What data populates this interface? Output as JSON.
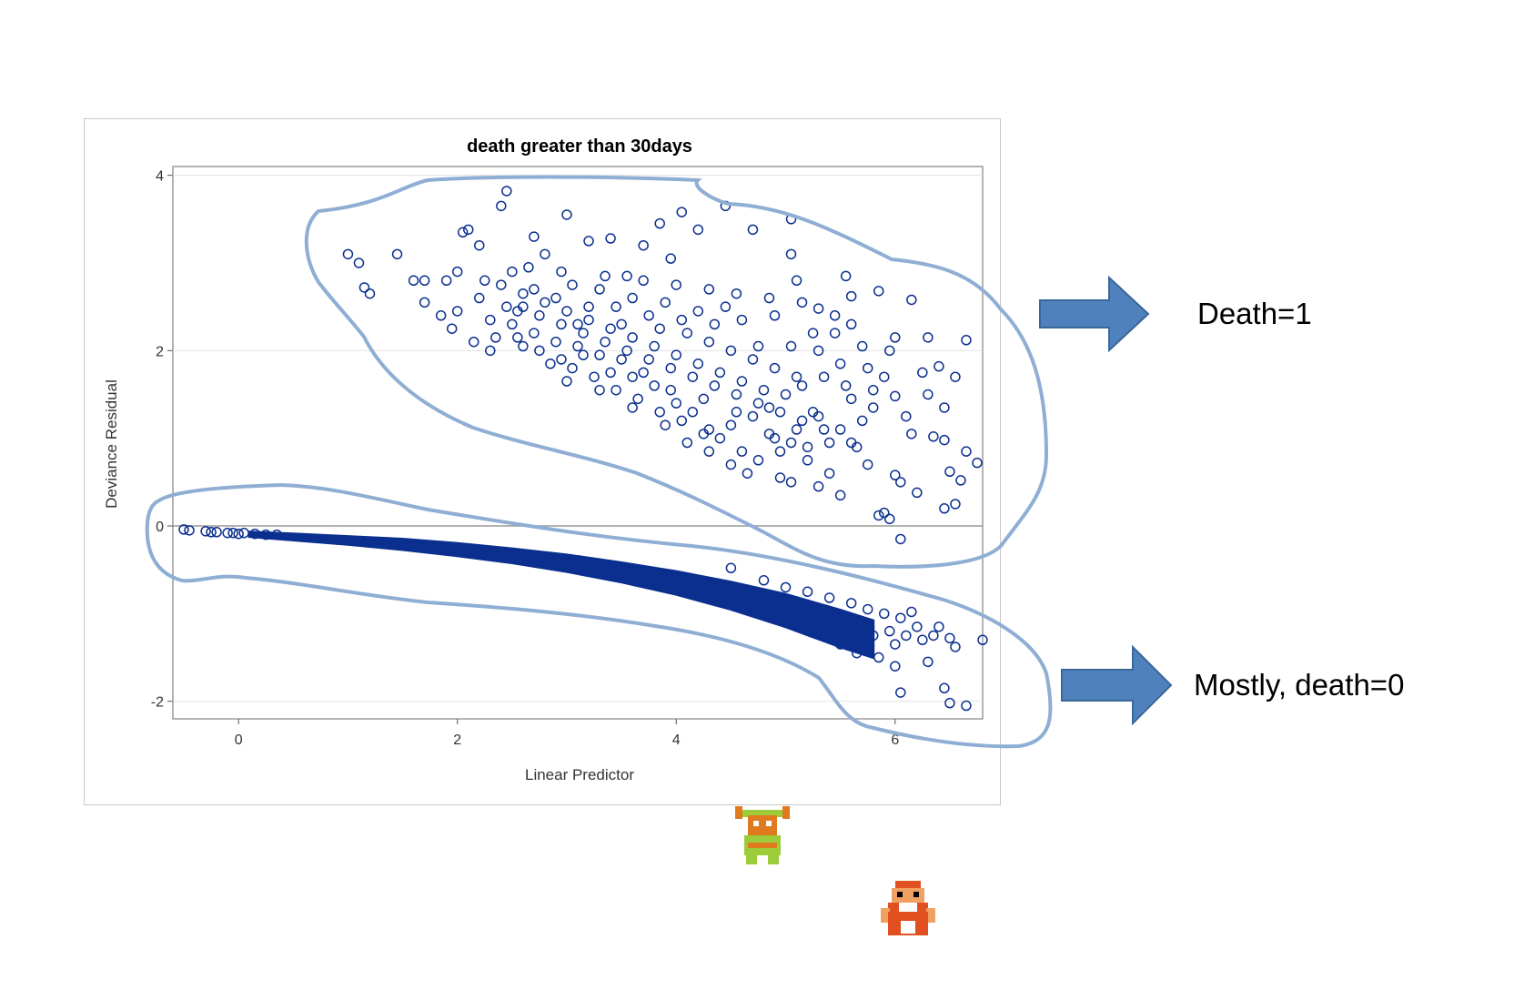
{
  "chart_data": {
    "type": "scatter",
    "title": "death greater than 30days",
    "xlabel": "Linear Predictor",
    "ylabel": "Deviance Residual",
    "xlim": [
      -0.6,
      6.8
    ],
    "ylim": [
      -2.2,
      4.1
    ],
    "xticks": [
      0,
      2,
      4,
      6
    ],
    "yticks": [
      -2,
      0,
      2,
      4
    ],
    "grid": "horizontal",
    "marker": "open circle",
    "series_color": "#0a2f8f",
    "series": [
      {
        "group": "death=1 (upper cluster)",
        "points": [
          [
            1.0,
            3.1
          ],
          [
            1.1,
            3.0
          ],
          [
            1.15,
            2.72
          ],
          [
            1.2,
            2.65
          ],
          [
            1.45,
            3.1
          ],
          [
            1.6,
            2.8
          ],
          [
            1.7,
            2.8
          ],
          [
            1.7,
            2.55
          ],
          [
            1.85,
            2.4
          ],
          [
            1.9,
            2.8
          ],
          [
            2.0,
            2.9
          ],
          [
            2.05,
            3.35
          ],
          [
            2.1,
            3.38
          ],
          [
            2.2,
            3.2
          ],
          [
            2.3,
            2.0
          ],
          [
            2.4,
            3.65
          ],
          [
            2.45,
            3.82
          ],
          [
            2.6,
            2.5
          ],
          [
            2.7,
            3.3
          ],
          [
            2.8,
            3.1
          ],
          [
            2.95,
            2.9
          ],
          [
            3.0,
            3.55
          ],
          [
            3.1,
            2.3
          ],
          [
            3.2,
            3.25
          ],
          [
            3.4,
            3.28
          ],
          [
            3.55,
            2.85
          ],
          [
            3.7,
            3.2
          ],
          [
            3.85,
            3.45
          ],
          [
            3.95,
            3.05
          ],
          [
            4.05,
            3.58
          ],
          [
            4.2,
            3.38
          ],
          [
            4.45,
            3.65
          ],
          [
            4.7,
            3.38
          ],
          [
            5.05,
            3.5
          ],
          [
            5.05,
            3.1
          ],
          [
            5.1,
            2.8
          ],
          [
            5.3,
            2.48
          ],
          [
            5.55,
            2.85
          ],
          [
            5.85,
            2.68
          ],
          [
            5.6,
            2.62
          ],
          [
            6.15,
            2.58
          ],
          [
            6.3,
            2.15
          ],
          [
            6.65,
            2.12
          ],
          [
            6.0,
            2.15
          ],
          [
            5.95,
            2.0
          ],
          [
            6.4,
            1.82
          ],
          [
            6.25,
            1.75
          ],
          [
            6.55,
            1.7
          ],
          [
            6.0,
            1.48
          ],
          [
            6.15,
            1.05
          ],
          [
            6.35,
            1.02
          ],
          [
            6.45,
            0.98
          ],
          [
            6.75,
            0.72
          ],
          [
            6.65,
            0.85
          ],
          [
            6.5,
            0.62
          ],
          [
            6.6,
            0.52
          ],
          [
            6.55,
            0.25
          ],
          [
            6.45,
            0.2
          ],
          [
            6.2,
            0.38
          ],
          [
            6.0,
            0.58
          ],
          [
            6.05,
            0.5
          ],
          [
            5.85,
            0.12
          ],
          [
            5.9,
            0.15
          ],
          [
            5.95,
            0.08
          ],
          [
            6.05,
            -0.15
          ],
          [
            5.75,
            0.7
          ],
          [
            5.5,
            0.35
          ],
          [
            5.3,
            0.45
          ],
          [
            5.05,
            0.5
          ],
          [
            4.95,
            0.55
          ],
          [
            4.75,
            0.75
          ],
          [
            4.6,
            0.85
          ],
          [
            4.9,
            1.0
          ],
          [
            5.2,
            0.9
          ],
          [
            5.4,
            0.95
          ],
          [
            5.65,
            0.9
          ],
          [
            4.4,
            1.0
          ],
          [
            4.3,
            1.1
          ],
          [
            4.15,
            1.3
          ],
          [
            4.0,
            1.4
          ],
          [
            3.8,
            1.6
          ],
          [
            3.6,
            1.7
          ],
          [
            3.5,
            1.9
          ],
          [
            3.3,
            1.95
          ],
          [
            3.1,
            2.05
          ],
          [
            2.9,
            2.1
          ],
          [
            2.7,
            2.2
          ],
          [
            2.5,
            2.3
          ],
          [
            2.6,
            2.05
          ],
          [
            2.85,
            1.85
          ],
          [
            3.05,
            1.8
          ],
          [
            3.25,
            1.7
          ],
          [
            3.45,
            1.55
          ],
          [
            3.65,
            1.45
          ],
          [
            3.85,
            1.3
          ],
          [
            4.05,
            1.2
          ],
          [
            4.25,
            1.05
          ],
          [
            4.5,
            1.15
          ],
          [
            4.7,
            1.25
          ],
          [
            4.85,
            1.35
          ],
          [
            5.0,
            1.5
          ],
          [
            5.15,
            1.6
          ],
          [
            5.35,
            1.7
          ],
          [
            5.5,
            1.85
          ],
          [
            5.25,
            1.3
          ],
          [
            5.6,
            1.45
          ],
          [
            5.8,
            1.55
          ],
          [
            5.7,
            1.2
          ],
          [
            5.5,
            1.1
          ],
          [
            5.1,
            1.1
          ],
          [
            4.8,
            1.55
          ],
          [
            4.6,
            1.65
          ],
          [
            4.4,
            1.75
          ],
          [
            4.2,
            1.85
          ],
          [
            4.0,
            1.95
          ],
          [
            3.8,
            2.05
          ],
          [
            3.6,
            2.15
          ],
          [
            3.4,
            2.25
          ],
          [
            3.2,
            2.35
          ],
          [
            3.0,
            2.45
          ],
          [
            2.8,
            2.55
          ],
          [
            2.6,
            2.65
          ],
          [
            2.4,
            2.75
          ],
          [
            2.2,
            2.6
          ],
          [
            2.0,
            2.45
          ],
          [
            1.95,
            2.25
          ],
          [
            2.15,
            2.1
          ],
          [
            2.35,
            2.15
          ],
          [
            2.55,
            2.45
          ],
          [
            2.75,
            2.4
          ],
          [
            2.95,
            2.3
          ],
          [
            3.15,
            2.2
          ],
          [
            3.35,
            2.1
          ],
          [
            3.55,
            2.0
          ],
          [
            3.75,
            1.9
          ],
          [
            3.95,
            1.8
          ],
          [
            4.15,
            1.7
          ],
          [
            4.35,
            1.6
          ],
          [
            4.55,
            1.5
          ],
          [
            4.75,
            1.4
          ],
          [
            4.95,
            1.3
          ],
          [
            5.15,
            1.2
          ],
          [
            5.35,
            1.1
          ],
          [
            4.1,
            2.2
          ],
          [
            4.3,
            2.1
          ],
          [
            4.5,
            2.0
          ],
          [
            4.7,
            1.9
          ],
          [
            4.9,
            1.8
          ],
          [
            5.1,
            1.7
          ],
          [
            5.3,
            2.0
          ],
          [
            5.45,
            2.2
          ],
          [
            4.6,
            2.35
          ],
          [
            4.9,
            2.4
          ],
          [
            4.2,
            2.45
          ],
          [
            3.9,
            2.55
          ],
          [
            3.6,
            2.6
          ],
          [
            3.3,
            2.7
          ],
          [
            3.05,
            2.75
          ],
          [
            2.65,
            2.95
          ],
          [
            2.9,
            2.6
          ],
          [
            3.45,
            2.5
          ],
          [
            3.75,
            2.4
          ],
          [
            4.05,
            2.35
          ],
          [
            4.45,
            2.5
          ],
          [
            4.75,
            2.05
          ],
          [
            5.05,
            2.05
          ],
          [
            5.25,
            2.2
          ],
          [
            4.35,
            2.3
          ],
          [
            3.85,
            2.25
          ],
          [
            3.5,
            2.3
          ],
          [
            3.2,
            2.5
          ],
          [
            2.45,
            2.5
          ],
          [
            2.3,
            2.35
          ],
          [
            2.25,
            2.8
          ],
          [
            2.5,
            2.9
          ],
          [
            2.7,
            2.7
          ],
          [
            3.35,
            2.85
          ],
          [
            3.7,
            2.8
          ],
          [
            4.0,
            2.75
          ],
          [
            4.3,
            2.7
          ],
          [
            4.55,
            2.65
          ],
          [
            4.85,
            2.6
          ],
          [
            5.15,
            2.55
          ],
          [
            5.45,
            2.4
          ],
          [
            5.6,
            2.3
          ],
          [
            5.7,
            2.05
          ],
          [
            5.75,
            1.8
          ],
          [
            5.8,
            1.35
          ],
          [
            5.6,
            0.95
          ],
          [
            5.4,
            0.6
          ],
          [
            5.2,
            0.75
          ],
          [
            4.95,
            0.85
          ],
          [
            4.55,
            1.3
          ],
          [
            4.25,
            1.45
          ],
          [
            3.95,
            1.55
          ],
          [
            3.7,
            1.75
          ],
          [
            3.4,
            1.75
          ],
          [
            3.15,
            1.95
          ],
          [
            2.95,
            1.9
          ],
          [
            2.75,
            2.0
          ],
          [
            2.55,
            2.15
          ],
          [
            3.0,
            1.65
          ],
          [
            3.3,
            1.55
          ],
          [
            3.6,
            1.35
          ],
          [
            3.9,
            1.15
          ],
          [
            4.1,
            0.95
          ],
          [
            4.3,
            0.85
          ],
          [
            4.5,
            0.7
          ],
          [
            4.65,
            0.6
          ],
          [
            4.85,
            1.05
          ],
          [
            5.05,
            0.95
          ],
          [
            5.3,
            1.25
          ],
          [
            5.55,
            1.6
          ],
          [
            5.9,
            1.7
          ],
          [
            6.1,
            1.25
          ],
          [
            6.3,
            1.5
          ],
          [
            6.45,
            1.35
          ]
        ]
      },
      {
        "group": "death=0 (lower band)",
        "points": [
          [
            -0.5,
            -0.04
          ],
          [
            -0.45,
            -0.05
          ],
          [
            -0.3,
            -0.06
          ],
          [
            -0.25,
            -0.07
          ],
          [
            -0.2,
            -0.07
          ],
          [
            -0.1,
            -0.08
          ],
          [
            -0.05,
            -0.08
          ],
          [
            0.0,
            -0.09
          ],
          [
            0.05,
            -0.08
          ],
          [
            0.15,
            -0.09
          ],
          [
            0.25,
            -0.1
          ],
          [
            0.35,
            -0.1
          ]
        ],
        "band": {
          "x": [
            0.1,
            0.5,
            1.0,
            1.5,
            2.0,
            2.5,
            3.0,
            3.5,
            4.0,
            4.5,
            5.0,
            5.5,
            5.8
          ],
          "upper": [
            -0.07,
            -0.09,
            -0.12,
            -0.15,
            -0.2,
            -0.26,
            -0.33,
            -0.42,
            -0.52,
            -0.64,
            -0.78,
            -0.96,
            -1.08
          ],
          "lower": [
            -0.12,
            -0.16,
            -0.21,
            -0.27,
            -0.34,
            -0.42,
            -0.52,
            -0.64,
            -0.78,
            -0.95,
            -1.15,
            -1.38,
            -1.5
          ]
        },
        "outliers": [
          [
            4.5,
            -0.48
          ],
          [
            4.8,
            -0.62
          ],
          [
            5.0,
            -0.7
          ],
          [
            5.2,
            -0.75
          ],
          [
            5.4,
            -0.82
          ],
          [
            5.6,
            -0.88
          ],
          [
            5.75,
            -0.95
          ],
          [
            5.9,
            -1.0
          ],
          [
            6.05,
            -1.05
          ],
          [
            6.2,
            -1.15
          ],
          [
            6.35,
            -1.25
          ],
          [
            6.5,
            -1.28
          ],
          [
            6.1,
            -1.25
          ],
          [
            5.95,
            -1.2
          ],
          [
            6.0,
            -1.35
          ],
          [
            6.25,
            -1.3
          ],
          [
            6.55,
            -1.38
          ],
          [
            6.3,
            -1.55
          ],
          [
            6.0,
            -1.6
          ],
          [
            5.85,
            -1.5
          ],
          [
            5.65,
            -1.45
          ],
          [
            6.05,
            -1.9
          ],
          [
            6.45,
            -1.85
          ],
          [
            6.5,
            -2.02
          ],
          [
            6.65,
            -2.05
          ],
          [
            6.8,
            -1.3
          ],
          [
            5.5,
            -1.35
          ],
          [
            5.3,
            -1.2
          ],
          [
            5.1,
            -1.05
          ],
          [
            4.9,
            -0.95
          ],
          [
            5.6,
            -1.1
          ],
          [
            5.8,
            -1.25
          ],
          [
            6.15,
            -0.98
          ],
          [
            6.4,
            -1.15
          ]
        ]
      }
    ]
  },
  "annotations": {
    "upper_label": "Death=1",
    "lower_label": "Mostly, death=0",
    "arrow_color": "#4f81bd",
    "outline_color": "#8faed3"
  }
}
